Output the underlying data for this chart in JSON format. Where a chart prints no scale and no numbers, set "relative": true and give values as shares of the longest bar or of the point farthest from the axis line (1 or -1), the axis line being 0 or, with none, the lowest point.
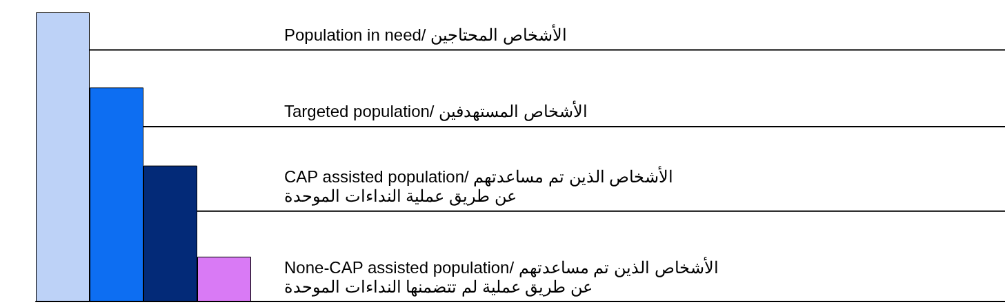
{
  "chart_data": {
    "type": "bar",
    "relative": true,
    "categories": [
      null,
      null,
      null,
      null
    ],
    "values": [
      1,
      0.74,
      0.47,
      0.155
    ],
    "colors": [
      "#bdd2f7",
      "#0d6ef2",
      "#032a78",
      "#d97af5"
    ],
    "annotations": [
      "Population in need/ الأشخاص المحتاجين",
      "Targeted population/ الأشخاص المستهدفين",
      "CAP assisted population/ الأشخاص الذين تم مساعدتهم\nعن طريق عملية النداءات الموحدة",
      "None-CAP assisted population/ الأشخاص الذين تم مساعدتهم\nعن طريق عملية لم تتضمنها النداءات الموحدة"
    ]
  }
}
